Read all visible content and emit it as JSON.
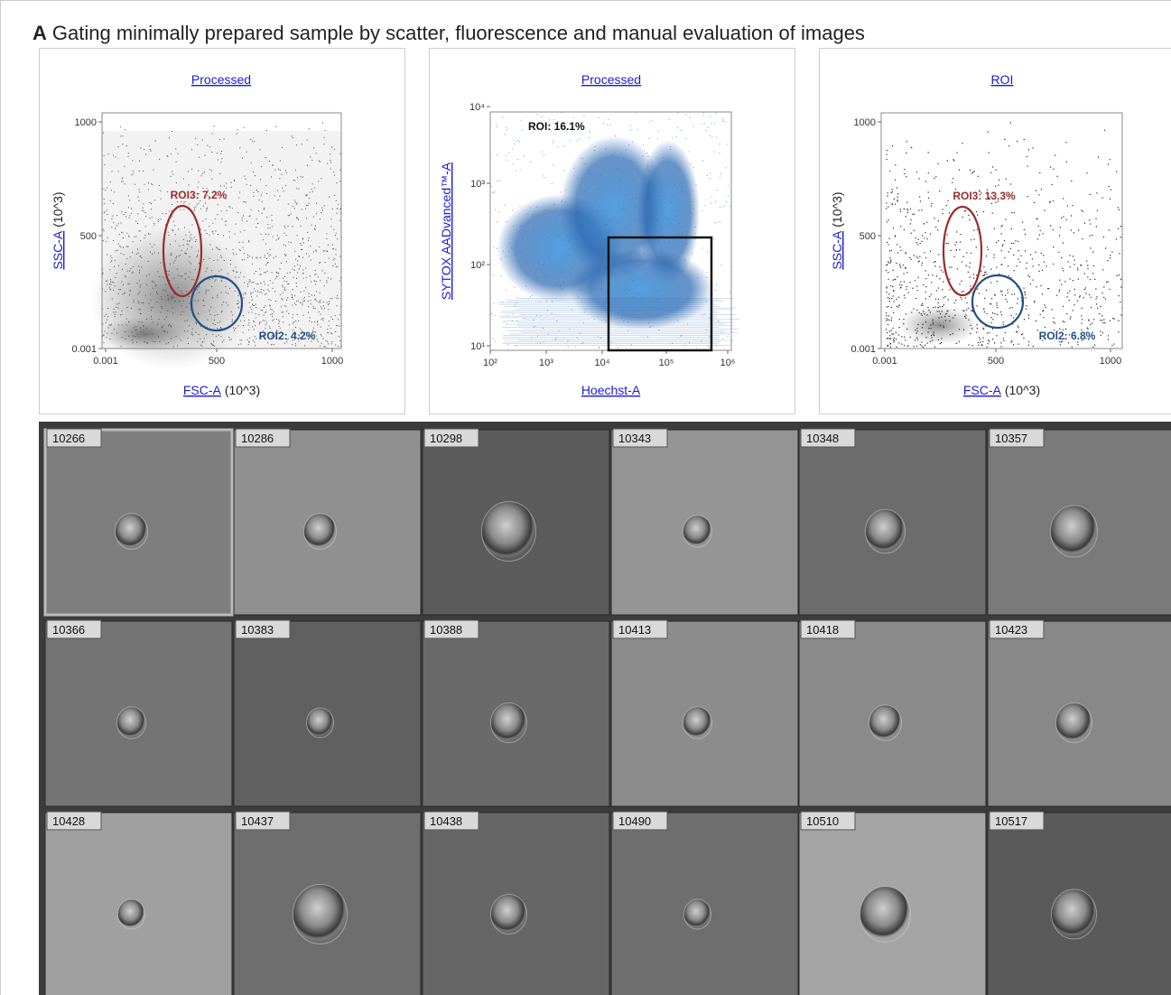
{
  "header": {
    "label": "A",
    "title": "Gating minimally prepared sample by scatter, fluorescence and manual evaluation of images"
  },
  "plots": [
    {
      "title": "Processed",
      "y_label": "SSC-A",
      "y_unit": "(10^3)",
      "x_label": "FSC-A",
      "x_unit": "(10^3)",
      "yticks": [
        "1000",
        "500",
        "0.001"
      ],
      "xticks": [
        "0.001",
        "500",
        "1000"
      ],
      "gates": [
        "ROI3: 7.2%",
        "ROI2: 4.2%"
      ]
    },
    {
      "title": "Processed",
      "y_label": "SYTOX AADvanced™-A",
      "x_label": "Hoechst-A",
      "yticks": [
        "10⁴",
        "10³",
        "10²",
        "10¹"
      ],
      "xticks": [
        "10²",
        "10³",
        "10⁴",
        "10⁵",
        "10⁶"
      ],
      "gates": [
        "ROI: 16.1%"
      ]
    },
    {
      "title": "ROI",
      "y_label": "SSC-A",
      "y_unit": "(10^3)",
      "x_label": "FSC-A",
      "x_unit": "(10^3)",
      "yticks": [
        "1000",
        "500",
        "0.001"
      ],
      "xticks": [
        "0.001",
        "500",
        "1000"
      ],
      "gates": [
        "ROI3: 13.3%",
        "ROI2: 6.8%"
      ]
    }
  ],
  "gallery": {
    "tiles": [
      "10266",
      "10286",
      "10298",
      "10343",
      "10348",
      "10357",
      "10366",
      "10383",
      "10388",
      "10413",
      "10418",
      "10423",
      "10428",
      "10437",
      "10438",
      "10490",
      "10510",
      "10517"
    ]
  }
}
